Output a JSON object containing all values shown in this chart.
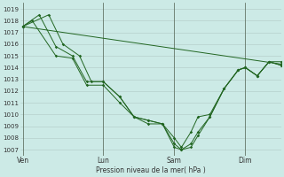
{
  "background_color": "#cceae6",
  "grid_color": "#b0c8c4",
  "line_color": "#226622",
  "marker_color": "#226622",
  "xlabel": "Pression niveau de la mer( hPa )",
  "ylim": [
    1006.5,
    1019.5
  ],
  "yticks": [
    1007,
    1008,
    1009,
    1010,
    1011,
    1012,
    1013,
    1014,
    1015,
    1016,
    1017,
    1018,
    1019
  ],
  "xtick_labels": [
    "Ven",
    "Lun",
    "Sam",
    "Dim"
  ],
  "xtick_positions": [
    1,
    35,
    65,
    95
  ],
  "vline_positions": [
    1,
    35,
    65,
    95
  ],
  "xlim": [
    0,
    110
  ],
  "series": [
    {
      "x": [
        1,
        110
      ],
      "y": [
        1017.5,
        1014.3
      ]
    },
    {
      "x": [
        1,
        5,
        15,
        22,
        28,
        35,
        42,
        48,
        54,
        60,
        65,
        68,
        72,
        75,
        80,
        86,
        92,
        95,
        100,
        105,
        110
      ],
      "y": [
        1017.5,
        1018.0,
        1015.0,
        1014.8,
        1012.5,
        1012.5,
        1011.0,
        1009.8,
        1009.5,
        1009.2,
        1007.2,
        1007.0,
        1007.2,
        1008.2,
        1009.8,
        1012.2,
        1013.8,
        1014.0,
        1013.3,
        1014.5,
        1014.2
      ]
    },
    {
      "x": [
        1,
        8,
        15,
        22,
        28,
        35,
        42,
        48,
        54,
        60,
        65,
        68,
        72,
        75,
        80,
        86,
        92,
        95,
        100,
        105,
        110
      ],
      "y": [
        1017.5,
        1018.5,
        1015.8,
        1015.0,
        1012.8,
        1012.8,
        1011.5,
        1009.8,
        1009.5,
        1009.2,
        1007.5,
        1007.0,
        1007.5,
        1008.5,
        1009.8,
        1012.2,
        1013.8,
        1014.0,
        1013.3,
        1014.5,
        1014.5
      ]
    },
    {
      "x": [
        1,
        12,
        18,
        25,
        30,
        35,
        42,
        48,
        54,
        60,
        65,
        68,
        72,
        75,
        80,
        86,
        92,
        95,
        100,
        105,
        110
      ],
      "y": [
        1017.5,
        1018.5,
        1016.0,
        1015.0,
        1012.8,
        1012.8,
        1011.5,
        1009.8,
        1009.2,
        1009.2,
        1008.0,
        1007.2,
        1008.5,
        1009.8,
        1010.0,
        1012.2,
        1013.8,
        1014.0,
        1013.3,
        1014.5,
        1014.2
      ]
    }
  ]
}
